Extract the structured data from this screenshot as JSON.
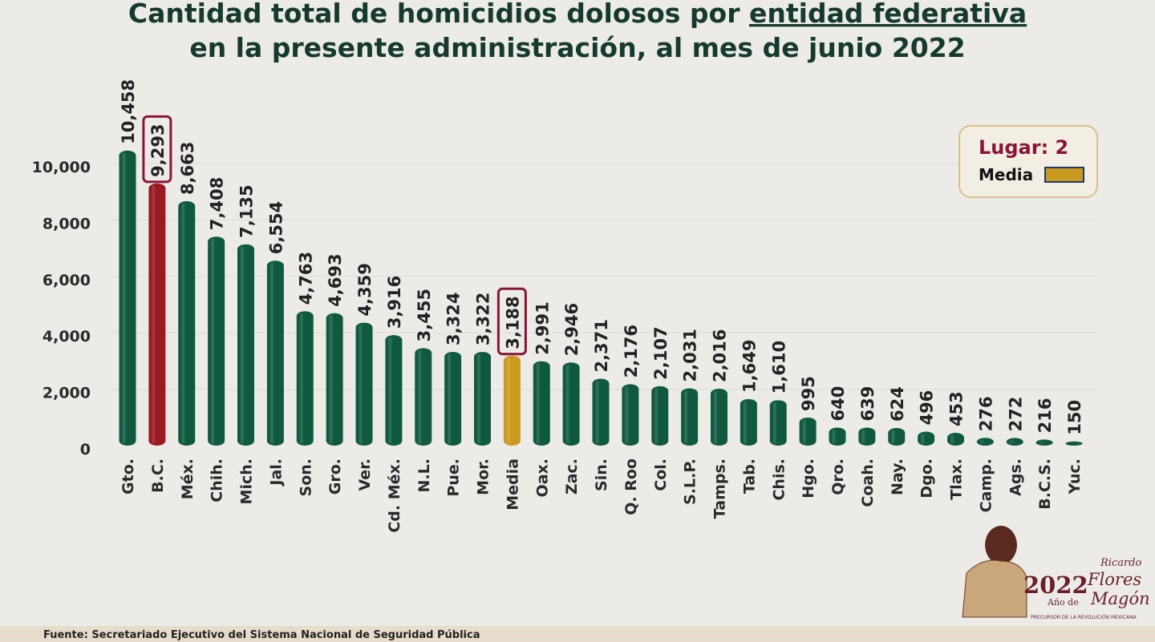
{
  "chart_data": {
    "type": "bar",
    "title_line1_a": "Cantidad total de homicidios dolosos por ",
    "title_line1_b": "entidad federativa",
    "title_line2": "en la presente administración, al mes de junio 2022",
    "xlabel": "",
    "ylabel": "",
    "ylim": [
      0,
      10000
    ],
    "yticks": [
      0,
      2000,
      4000,
      6000,
      8000,
      10000
    ],
    "ytick_labels": [
      "0",
      "2,000",
      "4,000",
      "6,000",
      "8,000",
      "10,000"
    ],
    "grid": true,
    "categories": [
      "Gto.",
      "B.C.",
      "Méx.",
      "Chih.",
      "Mich.",
      "Jal.",
      "Son.",
      "Gro.",
      "Ver.",
      "Cd. Méx.",
      "N.L.",
      "Pue.",
      "Mor.",
      "Media",
      "Oax.",
      "Zac.",
      "Sin.",
      "Q. Roo",
      "Col.",
      "S.L.P.",
      "Tamps.",
      "Tab.",
      "Chis.",
      "Hgo.",
      "Qro.",
      "Coah.",
      "Nay.",
      "Dgo.",
      "Tlax.",
      "Camp.",
      "Ags.",
      "B.C.S.",
      "Yuc."
    ],
    "values": [
      10458,
      9293,
      8663,
      7408,
      7135,
      6554,
      4763,
      4693,
      4359,
      3916,
      3455,
      3324,
      3322,
      3188,
      2991,
      2946,
      2371,
      2176,
      2107,
      2031,
      2016,
      1649,
      1610,
      995,
      640,
      639,
      624,
      496,
      453,
      276,
      272,
      216,
      150
    ],
    "value_labels": [
      "10,458",
      "9,293",
      "8,663",
      "7,408",
      "7,135",
      "6,554",
      "4,763",
      "4,693",
      "4,359",
      "3,916",
      "3,455",
      "3,324",
      "3,322",
      "3,188",
      "2,991",
      "2,946",
      "2,371",
      "2,176",
      "2,107",
      "2,031",
      "2,016",
      "1,649",
      "1,610",
      "995",
      "640",
      "639",
      "624",
      "496",
      "453",
      "276",
      "272",
      "216",
      "150"
    ],
    "highlighted": [
      "B.C.",
      "Media"
    ],
    "colors": {
      "default": "#0f5a3f",
      "highlight": "#9a1a22",
      "media": "#c99a1e",
      "box": "#8a1538"
    },
    "legend": {
      "placement": "top-right",
      "lugar": "Lugar: 2",
      "media_label": "Media"
    }
  },
  "footer": {
    "source": "Fuente: Secretariado Ejecutivo del Sistema Nacional de Seguridad Pública"
  },
  "logo": {
    "year": "2022",
    "ano_de": "Año de",
    "name1": "Ricardo",
    "name2": "Flores",
    "name3": "Magón",
    "tagline": "PRECURSOR DE LA REVOLUCIÓN MEXICANA"
  }
}
